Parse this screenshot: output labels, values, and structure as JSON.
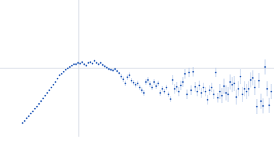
{
  "chart_data": {
    "type": "scatter",
    "color": "#3a6bbf",
    "error_color": "#a9bfe6",
    "reference_color": "#cfd6e0",
    "xlim": [
      0,
      400
    ],
    "ylim": [
      0,
      200
    ],
    "x_reference": 115,
    "y_reference": 100,
    "x": [
      33,
      36,
      39,
      42,
      45,
      48,
      51,
      54,
      57,
      60,
      63,
      66,
      69,
      72,
      75,
      78,
      81,
      84,
      87,
      90,
      93,
      96,
      99,
      102,
      105,
      108,
      111,
      114,
      117,
      120,
      123,
      126,
      129,
      132,
      135,
      138,
      141,
      144,
      147,
      150,
      153,
      156,
      159,
      162,
      165,
      168,
      171,
      174,
      177,
      180,
      183,
      186,
      189,
      192,
      195,
      198,
      201,
      204,
      207,
      210,
      213,
      216,
      219,
      222,
      225,
      228,
      231,
      234,
      237,
      240,
      243,
      246,
      249,
      252,
      255,
      258,
      261,
      264,
      267,
      270,
      273,
      276,
      279,
      282,
      285,
      288,
      291,
      294,
      297,
      300,
      303,
      306,
      309,
      312,
      315,
      318,
      321,
      324,
      327,
      330,
      333,
      336,
      339,
      342,
      345,
      348,
      351,
      354,
      357,
      360,
      363,
      366,
      369,
      372,
      375,
      378,
      381,
      384,
      387,
      390,
      393,
      396
    ],
    "values": [
      20,
      23,
      27,
      30,
      34,
      37,
      41,
      44,
      48,
      52,
      56,
      60,
      64,
      68,
      72,
      76,
      80,
      85,
      90,
      92,
      95,
      98,
      100,
      102,
      104,
      106,
      106,
      108,
      107,
      109,
      106,
      104,
      108,
      109,
      107,
      111,
      108,
      106,
      108,
      105,
      103,
      101,
      99,
      98,
      97,
      99,
      96,
      93,
      88,
      84,
      78,
      87,
      90,
      82,
      79,
      76,
      78,
      72,
      68,
      64,
      80,
      83,
      77,
      72,
      80,
      74,
      78,
      64,
      70,
      66,
      72,
      62,
      55,
      83,
      70,
      73,
      66,
      75,
      80,
      92,
      62,
      94,
      68,
      95,
      73,
      66,
      75,
      64,
      72,
      66,
      54,
      68,
      72,
      62,
      94,
      57,
      66,
      60,
      74,
      64,
      62,
      80,
      76,
      78,
      58,
      70,
      88,
      62,
      70,
      66,
      70,
      83,
      86,
      72,
      44,
      82,
      52,
      45,
      102,
      70,
      46,
      66
    ],
    "errors": [
      1,
      1,
      1,
      1,
      1,
      1,
      1,
      1,
      1,
      1,
      1,
      1,
      1,
      1,
      1,
      1,
      1,
      1,
      1,
      1,
      1,
      1,
      1,
      1,
      1,
      1,
      2,
      2,
      2,
      2,
      2,
      2,
      2,
      2,
      2,
      2,
      2,
      2,
      2,
      2,
      2,
      2,
      2,
      2,
      2,
      2,
      2,
      2,
      4,
      4,
      4,
      4,
      4,
      4,
      4,
      4,
      4,
      4,
      4,
      4,
      4,
      4,
      4,
      4,
      4,
      4,
      4,
      4,
      4,
      4,
      4,
      4,
      4,
      7,
      7,
      7,
      7,
      7,
      7,
      7,
      7,
      7,
      7,
      7,
      7,
      7,
      7,
      7,
      7,
      7,
      7,
      7,
      7,
      7,
      7,
      7,
      11,
      11,
      11,
      11,
      11,
      11,
      11,
      11,
      11,
      11,
      11,
      11,
      11,
      11,
      11,
      11,
      11,
      11,
      11,
      11,
      11,
      11,
      11,
      11,
      11,
      11
    ]
  }
}
